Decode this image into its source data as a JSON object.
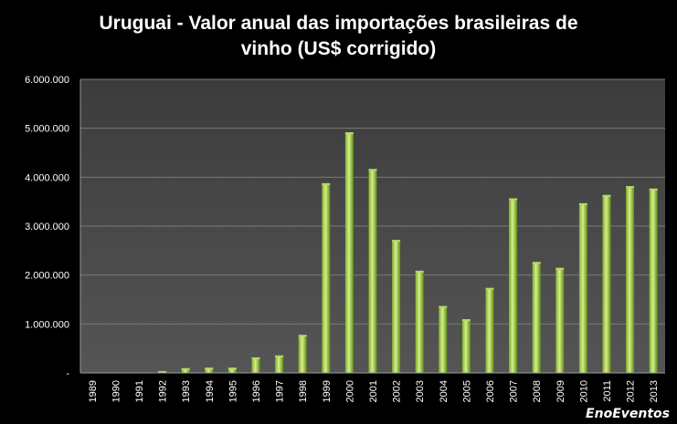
{
  "title": "Uruguai - Valor anual das importações  brasileiras de vinho (US$ corrigido)",
  "watermark": "EnoEventos",
  "colors": {
    "background": "#000000",
    "plot_area": "#4a4a4a",
    "bar_light": "#d4f08a",
    "bar_dark": "#6a9a1e",
    "grid": "#7a7a7a",
    "text": "#ffffff"
  },
  "chart_data": {
    "type": "bar",
    "title": "Uruguai - Valor anual das importações  brasileiras de vinho (US$ corrigido)",
    "xlabel": "",
    "ylabel": "",
    "ylim": [
      0,
      6000000
    ],
    "yticks": [
      {
        "value": 0,
        "label": "-"
      },
      {
        "value": 1000000,
        "label": "1.000.000"
      },
      {
        "value": 2000000,
        "label": "2.000.000"
      },
      {
        "value": 3000000,
        "label": "3.000.000"
      },
      {
        "value": 4000000,
        "label": "4.000.000"
      },
      {
        "value": 5000000,
        "label": "5.000.000"
      },
      {
        "value": 6000000,
        "label": "6.000.000"
      }
    ],
    "grid": true,
    "legend": "none",
    "categories": [
      "1989",
      "1990",
      "1991",
      "1992",
      "1993",
      "1994",
      "1995",
      "1996",
      "1997",
      "1998",
      "1999",
      "2000",
      "2001",
      "2002",
      "2003",
      "2004",
      "2005",
      "2006",
      "2007",
      "2008",
      "2009",
      "2010",
      "2011",
      "2012",
      "2013"
    ],
    "values": [
      0,
      0,
      0,
      20000,
      80000,
      90000,
      90000,
      300000,
      340000,
      760000,
      3860000,
      4900000,
      4150000,
      2700000,
      2070000,
      1350000,
      1080000,
      1720000,
      3550000,
      2250000,
      2130000,
      3450000,
      3620000,
      3800000,
      3750000
    ]
  }
}
